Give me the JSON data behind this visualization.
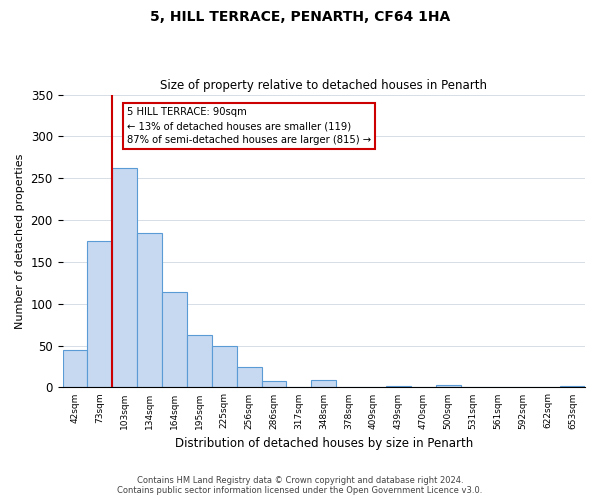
{
  "title": "5, HILL TERRACE, PENARTH, CF64 1HA",
  "subtitle": "Size of property relative to detached houses in Penarth",
  "xlabel": "Distribution of detached houses by size in Penarth",
  "ylabel": "Number of detached properties",
  "bin_labels": [
    "42sqm",
    "73sqm",
    "103sqm",
    "134sqm",
    "164sqm",
    "195sqm",
    "225sqm",
    "256sqm",
    "286sqm",
    "317sqm",
    "348sqm",
    "378sqm",
    "409sqm",
    "439sqm",
    "470sqm",
    "500sqm",
    "531sqm",
    "561sqm",
    "592sqm",
    "622sqm",
    "653sqm"
  ],
  "bar_values": [
    45,
    175,
    262,
    184,
    114,
    63,
    50,
    25,
    8,
    0,
    9,
    0,
    0,
    2,
    0,
    3,
    0,
    0,
    0,
    0,
    2
  ],
  "bar_color": "#c6d9f1",
  "bar_edge_color": "#5b9bd5",
  "marker_label": "5 HILL TERRACE: 90sqm",
  "annotation_line1": "← 13% of detached houses are smaller (119)",
  "annotation_line2": "87% of semi-detached houses are larger (815) →",
  "vline_color": "#cc0000",
  "vline_x_index": 1.5,
  "ylim": [
    0,
    350
  ],
  "yticks": [
    0,
    50,
    100,
    150,
    200,
    250,
    300,
    350
  ],
  "footer1": "Contains HM Land Registry data © Crown copyright and database right 2024.",
  "footer2": "Contains public sector information licensed under the Open Government Licence v3.0."
}
